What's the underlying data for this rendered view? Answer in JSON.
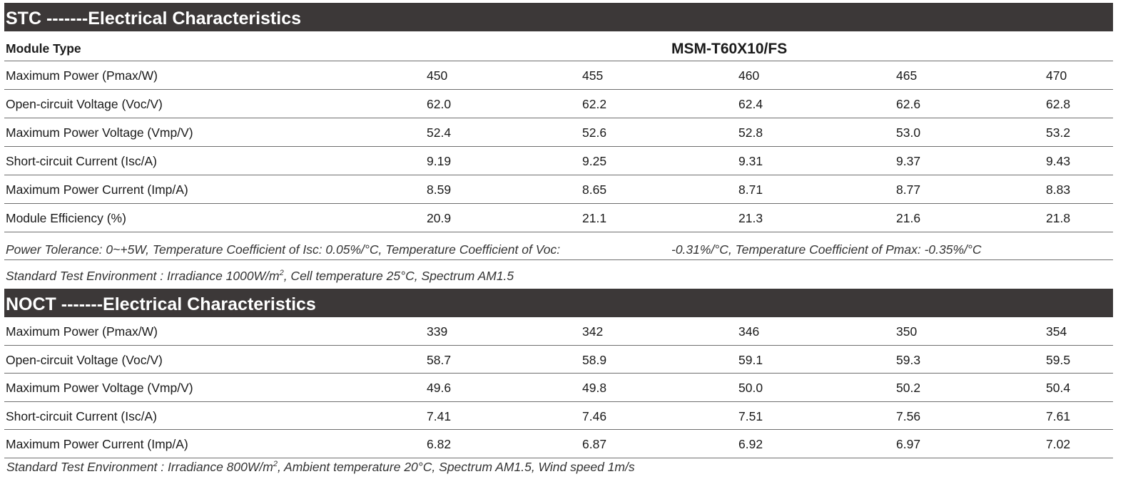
{
  "stc": {
    "title": "STC -------Electrical Characteristics",
    "module_type_label": "Module Type",
    "model": "MSM-T60X10/FS",
    "rows": [
      {
        "label": "Maximum Power (Pmax/W)",
        "values": [
          "450",
          "455",
          "460",
          "465",
          "470"
        ]
      },
      {
        "label": "Open-circuit Voltage (Voc/V)",
        "values": [
          "62.0",
          "62.2",
          "62.4",
          "62.6",
          "62.8"
        ]
      },
      {
        "label": "Maximum Power Voltage (Vmp/V)",
        "values": [
          "52.4",
          "52.6",
          "52.8",
          "53.0",
          "53.2"
        ]
      },
      {
        "label": "Short-circuit Current (Isc/A)",
        "values": [
          "9.19",
          "9.25",
          "9.31",
          "9.37",
          "9.43"
        ]
      },
      {
        "label": "Maximum Power Current (Imp/A)",
        "values": [
          "8.59",
          "8.65",
          "8.71",
          "8.77",
          "8.83"
        ]
      },
      {
        "label": "Module Efficiency (%)",
        "values": [
          "20.9",
          "21.1",
          "21.3",
          "21.6",
          "21.8"
        ]
      }
    ],
    "tolerance_note_part1": "Power Tolerance: 0~+5W, Temperature Coefficient of Isc: 0.05%/°C, Temperature Coefficient of Voc:",
    "tolerance_note_part2": "-0.31%/°C, Temperature Coefficient of Pmax: -0.35%/°C",
    "std_env_before": "Standard Test Environment : Irradiance 1000W/m",
    "std_env_sup": "2",
    "std_env_after": ", Cell temperature 25°C, Spectrum AM1.5"
  },
  "noct": {
    "title": "NOCT -------Electrical Characteristics",
    "rows": [
      {
        "label": "Maximum Power (Pmax/W)",
        "values": [
          "339",
          "342",
          "346",
          "350",
          "354"
        ]
      },
      {
        "label": "Open-circuit Voltage (Voc/V)",
        "values": [
          "58.7",
          "58.9",
          "59.1",
          "59.3",
          "59.5"
        ]
      },
      {
        "label": "Maximum Power Voltage (Vmp/V)",
        "values": [
          "49.6",
          "49.8",
          "50.0",
          "50.2",
          "50.4"
        ]
      },
      {
        "label": "Short-circuit Current (Isc/A)",
        "values": [
          "7.41",
          "7.46",
          "7.51",
          "7.56",
          "7.61"
        ]
      },
      {
        "label": "Maximum Power Current (Imp/A)",
        "values": [
          "6.82",
          "6.87",
          "6.92",
          "6.97",
          "7.02"
        ]
      }
    ],
    "std_env_before": "Standard Test Environment : Irradiance 800W/m",
    "std_env_sup": "2",
    "std_env_after": ", Ambient temperature 20°C, Spectrum AM1.5, Wind speed 1m/s"
  }
}
